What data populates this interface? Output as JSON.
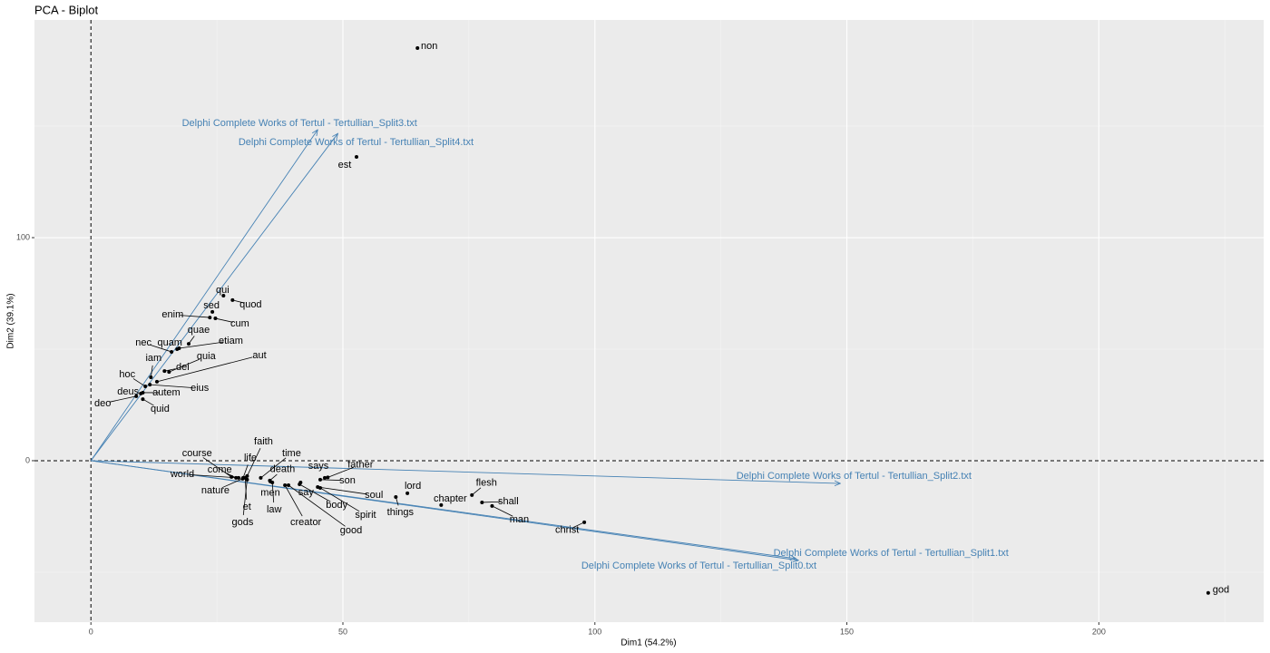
{
  "chart_data": {
    "type": "scatter",
    "title": "PCA - Biplot",
    "xlabel": "Dim1 (54.2%)",
    "ylabel": "Dim2 (39.1%)",
    "xlim": [
      -11.2,
      232.7
    ],
    "ylim": [
      -72.4,
      197.6
    ],
    "xticks": [
      0,
      50,
      100,
      150,
      200
    ],
    "yticks": [
      0,
      100
    ],
    "grid": true,
    "zero_lines": true,
    "points": {
      "color": "#000000",
      "labels": [
        "non",
        "est",
        "qui",
        "quod",
        "sed",
        "cum",
        "enim",
        "quae",
        "etiam",
        "nec",
        "quam",
        "iam",
        "quia",
        "dei",
        "aut",
        "hoc",
        "eius",
        "autem",
        "deus",
        "deo",
        "quid",
        "faith",
        "course",
        "life",
        "come",
        "world",
        "nature",
        "et",
        "gods",
        "time",
        "death",
        "men",
        "law",
        "creator",
        "good",
        "spirit",
        "say",
        "body",
        "says",
        "father",
        "son",
        "soul",
        "things",
        "lord",
        "chapter",
        "flesh",
        "shall",
        "man",
        "christ",
        "god"
      ],
      "x": [
        64.8,
        52.7,
        26.3,
        28.1,
        24.1,
        24.7,
        23.6,
        19.4,
        17.5,
        16.0,
        17.1,
        11.9,
        15.5,
        14.6,
        13.1,
        10.8,
        11.7,
        10.3,
        9.9,
        9.0,
        10.3,
        31.0,
        27.9,
        30.2,
        28.8,
        29.3,
        30.1,
        30.6,
        31.0,
        33.7,
        35.5,
        35.6,
        36.0,
        38.5,
        39.2,
        45.5,
        41.6,
        41.4,
        46.4,
        47.0,
        45.5,
        45.0,
        60.5,
        62.8,
        69.5,
        75.6,
        77.6,
        79.6,
        97.9,
        221.7
      ],
      "y": [
        185.0,
        136.2,
        74.0,
        72.0,
        66.7,
        63.8,
        64.2,
        52.4,
        50.4,
        48.8,
        50.0,
        37.4,
        39.8,
        40.2,
        35.4,
        33.3,
        34.1,
        30.5,
        30.1,
        28.9,
        27.6,
        -6.9,
        -7.3,
        -7.7,
        -7.7,
        -7.7,
        -8.1,
        -7.7,
        -8.5,
        -7.7,
        -8.9,
        -9.3,
        -9.8,
        -11.0,
        -11.0,
        -12.2,
        -9.8,
        -10.6,
        -7.7,
        -7.5,
        -8.5,
        -11.8,
        -16.3,
        -14.6,
        -19.9,
        -15.4,
        -18.7,
        -20.3,
        -27.6,
        -59.3
      ]
    },
    "arrows": {
      "color": "#4682B4",
      "labels": [
        "Delphi Complete Works of Tertul - Tertullian_Split0.txt",
        "Delphi Complete Works of Tertul - Tertullian_Split1.txt",
        "Delphi Complete Works of Tertul - Tertullian_Split2.txt",
        "Delphi Complete Works of Tertul - Tertullian_Split3.txt",
        "Delphi Complete Works of Tertul - Tertullian_Split4.txt"
      ],
      "x": [
        139.9,
        140.4,
        148.7,
        45.0,
        49.0
      ],
      "y": [
        -43.9,
        -44.7,
        -10.2,
        148.4,
        146.7
      ]
    }
  }
}
